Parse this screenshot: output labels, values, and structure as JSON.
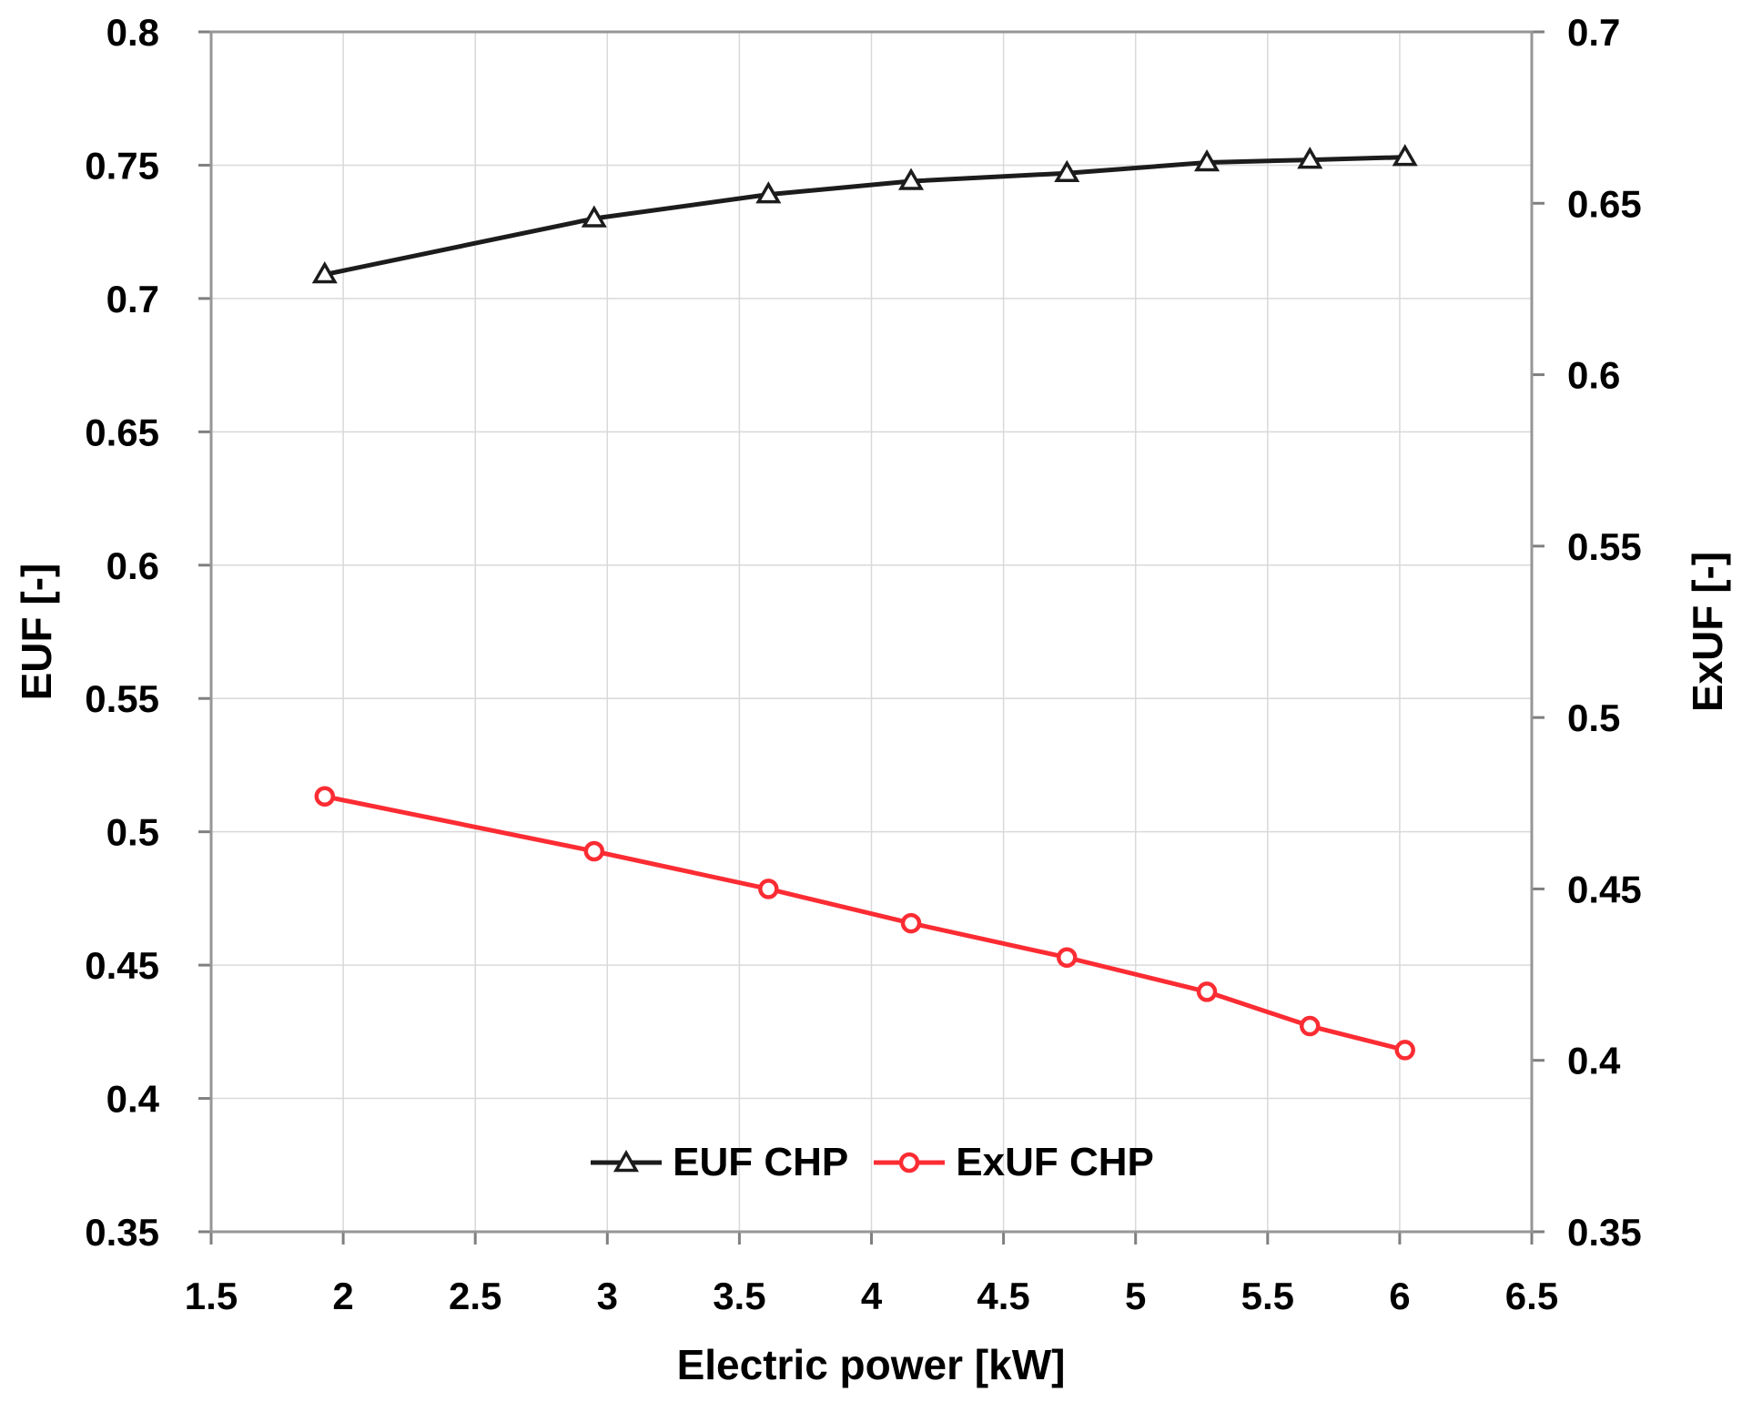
{
  "chart_data": {
    "type": "line",
    "title": "",
    "x_axis": {
      "label": "Electric power [kW]",
      "min": 1.5,
      "max": 6.5,
      "ticks": [
        1.5,
        2,
        2.5,
        3,
        3.5,
        4,
        4.5,
        5,
        5.5,
        6,
        6.5
      ]
    },
    "y_axis_left": {
      "label": "EUF [-]",
      "min": 0.35,
      "max": 0.8,
      "ticks": [
        0.8,
        0.75,
        0.7,
        0.65,
        0.6,
        0.55,
        0.5,
        0.45,
        0.4,
        0.35
      ]
    },
    "y_axis_right": {
      "label": "ExUF [-]",
      "min": 0.35,
      "max": 0.7,
      "ticks": [
        0.7,
        0.65,
        0.6,
        0.55,
        0.5,
        0.45,
        0.4,
        0.35
      ]
    },
    "grid": true,
    "legend_position": "bottom-center-inside",
    "x": [
      1.93,
      2.95,
      3.61,
      4.15,
      4.74,
      5.27,
      5.66,
      6.02
    ],
    "series": [
      {
        "name": "EUF CHP",
        "axis": "left",
        "marker": "triangle",
        "color": "#1c1c1c",
        "values": [
          0.709,
          0.73,
          0.739,
          0.744,
          0.747,
          0.751,
          0.752,
          0.753
        ]
      },
      {
        "name": "ExUF CHP",
        "axis": "right",
        "marker": "circle",
        "color": "#fb2c33",
        "values": [
          0.477,
          0.461,
          0.45,
          0.44,
          0.43,
          0.42,
          0.41,
          0.403
        ]
      }
    ],
    "colors": {
      "grid": "#d9d9d9",
      "frame": "#969696",
      "tick": "#7f7f7f",
      "text": "#000000"
    }
  }
}
